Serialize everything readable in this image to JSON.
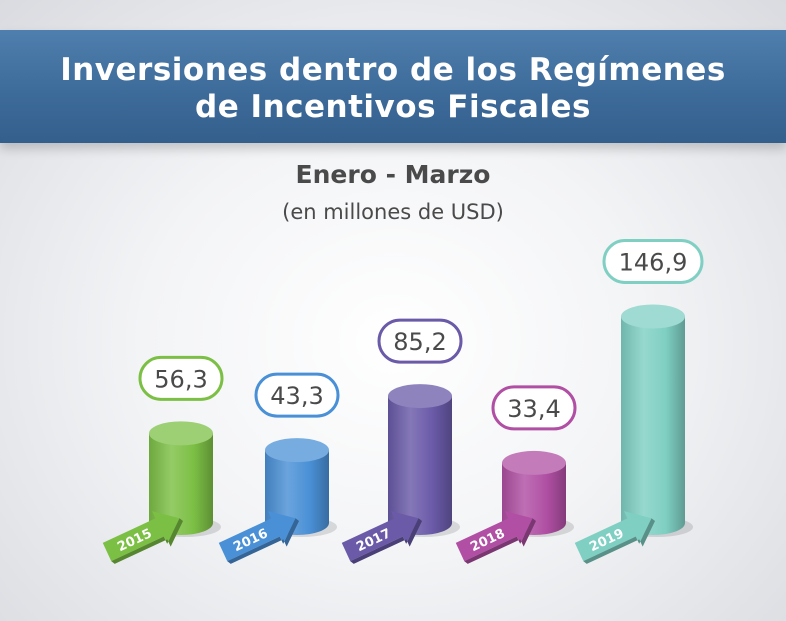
{
  "header": {
    "title_line1": "Inversiones dentro de los Regímenes",
    "title_line2": "de Incentivos Fiscales"
  },
  "chart_data": {
    "type": "bar",
    "title": "Inversiones dentro de los Regímenes de Incentivos Fiscales",
    "subtitle": "Enero - Marzo",
    "unit": "(en millones de USD)",
    "categories": [
      "2015",
      "2016",
      "2017",
      "2018",
      "2019"
    ],
    "values": [
      56.3,
      43.3,
      85.2,
      33.4,
      146.9
    ],
    "value_labels": [
      "56,3",
      "43,3",
      "85,2",
      "33,4",
      "146,9"
    ],
    "colors": [
      "#7cbf45",
      "#4a90d6",
      "#6a5aa8",
      "#b04fa3",
      "#7fcfc3"
    ],
    "grid": false,
    "legend": "none"
  }
}
